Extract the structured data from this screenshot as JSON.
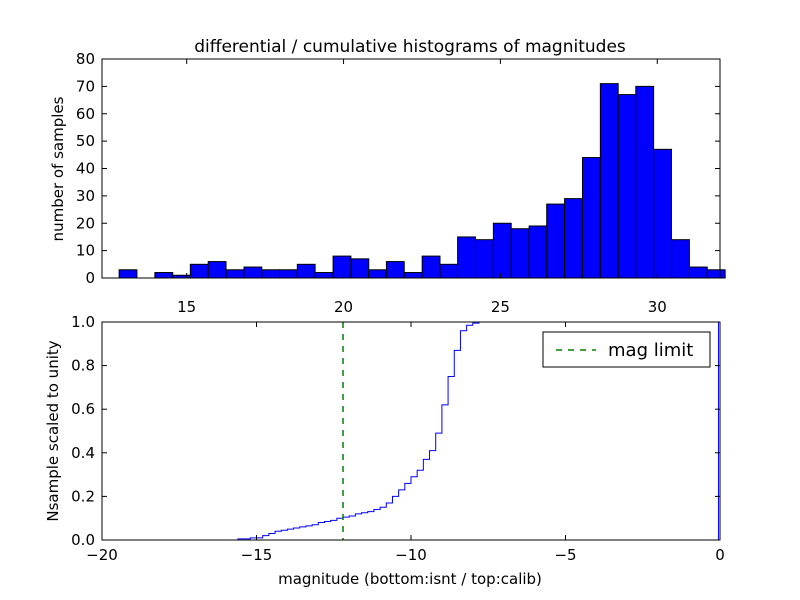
{
  "chart_data": [
    {
      "type": "bar",
      "title": "differential / cumulative histograms of magnitudes",
      "xlabel": "",
      "ylabel": "number of samples",
      "xlim": [
        12.3,
        32.0
      ],
      "ylim": [
        0,
        80
      ],
      "bar_color": "#0000ff",
      "bin_width": 0.568,
      "bins": [
        {
          "x": 13.13,
          "count": 3
        },
        {
          "x": 13.7,
          "count": 0
        },
        {
          "x": 14.27,
          "count": 2
        },
        {
          "x": 14.84,
          "count": 1
        },
        {
          "x": 15.4,
          "count": 5
        },
        {
          "x": 15.97,
          "count": 6
        },
        {
          "x": 16.54,
          "count": 3
        },
        {
          "x": 17.11,
          "count": 4
        },
        {
          "x": 17.68,
          "count": 3
        },
        {
          "x": 18.24,
          "count": 3
        },
        {
          "x": 18.81,
          "count": 5
        },
        {
          "x": 19.38,
          "count": 2
        },
        {
          "x": 19.95,
          "count": 8
        },
        {
          "x": 20.52,
          "count": 7
        },
        {
          "x": 21.08,
          "count": 3
        },
        {
          "x": 21.65,
          "count": 6
        },
        {
          "x": 22.22,
          "count": 2
        },
        {
          "x": 22.79,
          "count": 8
        },
        {
          "x": 23.36,
          "count": 5
        },
        {
          "x": 23.92,
          "count": 15
        },
        {
          "x": 24.49,
          "count": 14
        },
        {
          "x": 25.06,
          "count": 20
        },
        {
          "x": 25.63,
          "count": 18
        },
        {
          "x": 26.2,
          "count": 19
        },
        {
          "x": 26.76,
          "count": 27
        },
        {
          "x": 27.33,
          "count": 29
        },
        {
          "x": 27.9,
          "count": 44
        },
        {
          "x": 28.47,
          "count": 71
        },
        {
          "x": 29.04,
          "count": 67
        },
        {
          "x": 29.6,
          "count": 70
        },
        {
          "x": 30.17,
          "count": 47
        },
        {
          "x": 30.74,
          "count": 14
        },
        {
          "x": 31.31,
          "count": 4
        },
        {
          "x": 31.88,
          "count": 3
        }
      ],
      "xticks": [
        15,
        20,
        25,
        30
      ],
      "yticks": [
        0,
        10,
        20,
        30,
        40,
        50,
        60,
        70,
        80
      ],
      "xtick_position": "bottom"
    },
    {
      "type": "line",
      "title": "",
      "xlabel": "magnitude (bottom:isnt / top:calib)",
      "ylabel": "Nsample scaled to unity",
      "xlim": [
        -20,
        0
      ],
      "ylim": [
        0.0,
        1.0
      ],
      "xticks": [
        -20,
        -15,
        -10,
        -5,
        0
      ],
      "xtick_labels": [
        "−20",
        "−15",
        "−10",
        "−5",
        "0"
      ],
      "yticks": [
        0.0,
        0.2,
        0.4,
        0.6,
        0.8,
        1.0
      ],
      "ytick_labels": [
        "0.0",
        "0.2",
        "0.4",
        "0.6",
        "0.8",
        "1.0"
      ],
      "series": [
        {
          "type": "step",
          "color": "#0000ff",
          "x": [
            -20,
            -16.0,
            -15.6,
            -15.2,
            -14.8,
            -14.6,
            -14.4,
            -14.2,
            -14.0,
            -13.8,
            -13.6,
            -13.4,
            -13.2,
            -13.0,
            -12.8,
            -12.6,
            -12.4,
            -12.2,
            -12.0,
            -11.8,
            -11.6,
            -11.4,
            -11.2,
            -11.0,
            -10.8,
            -10.6,
            -10.4,
            -10.2,
            -10.0,
            -9.8,
            -9.6,
            -9.4,
            -9.2,
            -9.0,
            -8.8,
            -8.6,
            -8.4,
            -8.2,
            -8.0,
            -7.8,
            -7.6,
            -7.4,
            -0.05,
            -0.05
          ],
          "y": [
            0.0,
            0.0,
            0.005,
            0.01,
            0.02,
            0.03,
            0.04,
            0.045,
            0.05,
            0.055,
            0.06,
            0.065,
            0.07,
            0.08,
            0.085,
            0.09,
            0.1,
            0.105,
            0.11,
            0.12,
            0.125,
            0.13,
            0.14,
            0.15,
            0.17,
            0.2,
            0.23,
            0.26,
            0.29,
            0.32,
            0.37,
            0.41,
            0.49,
            0.62,
            0.75,
            0.87,
            0.96,
            0.985,
            0.995,
            1.0,
            1.0,
            1.0,
            1.0,
            0.0
          ]
        },
        {
          "name": "mag limit",
          "type": "vline",
          "style": "dashed",
          "color": "#008000",
          "x": -12.2
        }
      ],
      "legend": {
        "position": "top-right",
        "entries": [
          "mag limit"
        ]
      }
    }
  ]
}
